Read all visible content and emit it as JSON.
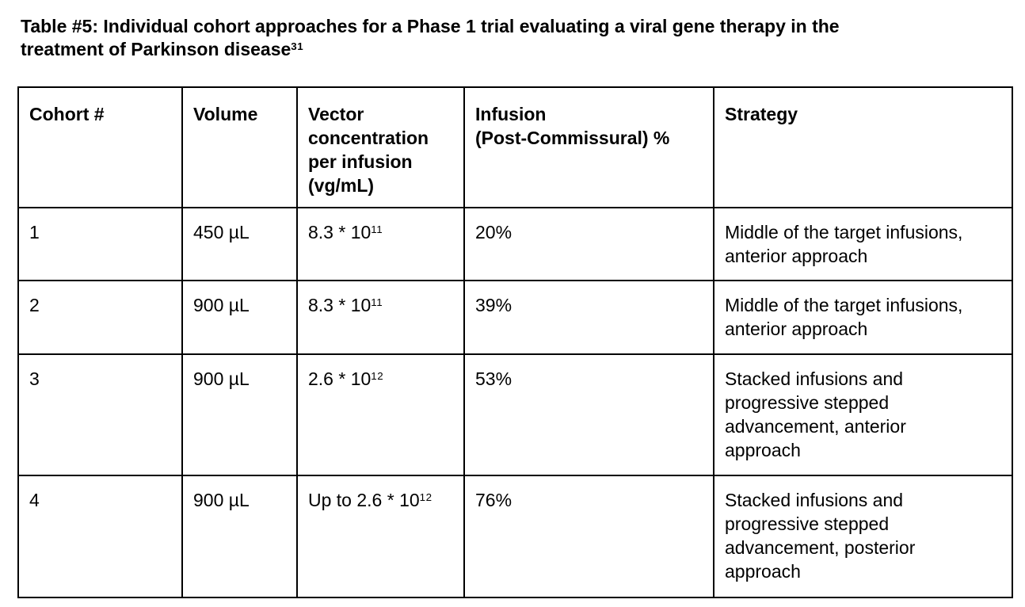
{
  "title": {
    "line1": "Table #5: Individual cohort approaches for a Phase 1 trial evaluating a viral gene therapy in the",
    "line2": "treatment of Parkinson disease",
    "citation_superscript": "31"
  },
  "table": {
    "headers": {
      "cohort": "Cohort #",
      "volume": "Volume",
      "vector_concentration": [
        "Vector",
        "concentration",
        "per infusion",
        "(vg/mL)"
      ],
      "infusion": [
        "Infusion",
        "(Post-Commissural) %"
      ],
      "strategy": "Strategy"
    },
    "rows": [
      {
        "cohort": "1",
        "volume": "450 µL",
        "concentration": {
          "base": "8.3 * 10",
          "exponent": "11"
        },
        "infusion": "20%",
        "strategy": [
          "Middle of the target infusions,",
          "anterior approach"
        ]
      },
      {
        "cohort": "2",
        "volume": "900 µL",
        "concentration": {
          "base": "8.3 * 10",
          "exponent": "11"
        },
        "infusion": "39%",
        "strategy": [
          "Middle of the target infusions,",
          "anterior approach"
        ]
      },
      {
        "cohort": "3",
        "volume": "900 µL",
        "concentration": {
          "base": "2.6 * 10",
          "exponent": "12"
        },
        "infusion": "53%",
        "strategy": [
          "Stacked infusions and",
          "progressive stepped",
          "advancement, anterior",
          "approach"
        ]
      },
      {
        "cohort": "4",
        "volume": "900 µL",
        "concentration": {
          "base": "Up to 2.6 * 10",
          "exponent": "12"
        },
        "infusion": "76%",
        "strategy": [
          "Stacked infusions and",
          "progressive stepped",
          "advancement, posterior",
          "approach"
        ]
      }
    ]
  },
  "colors": {
    "text": "#000000",
    "border": "#000000",
    "background": "#ffffff"
  }
}
